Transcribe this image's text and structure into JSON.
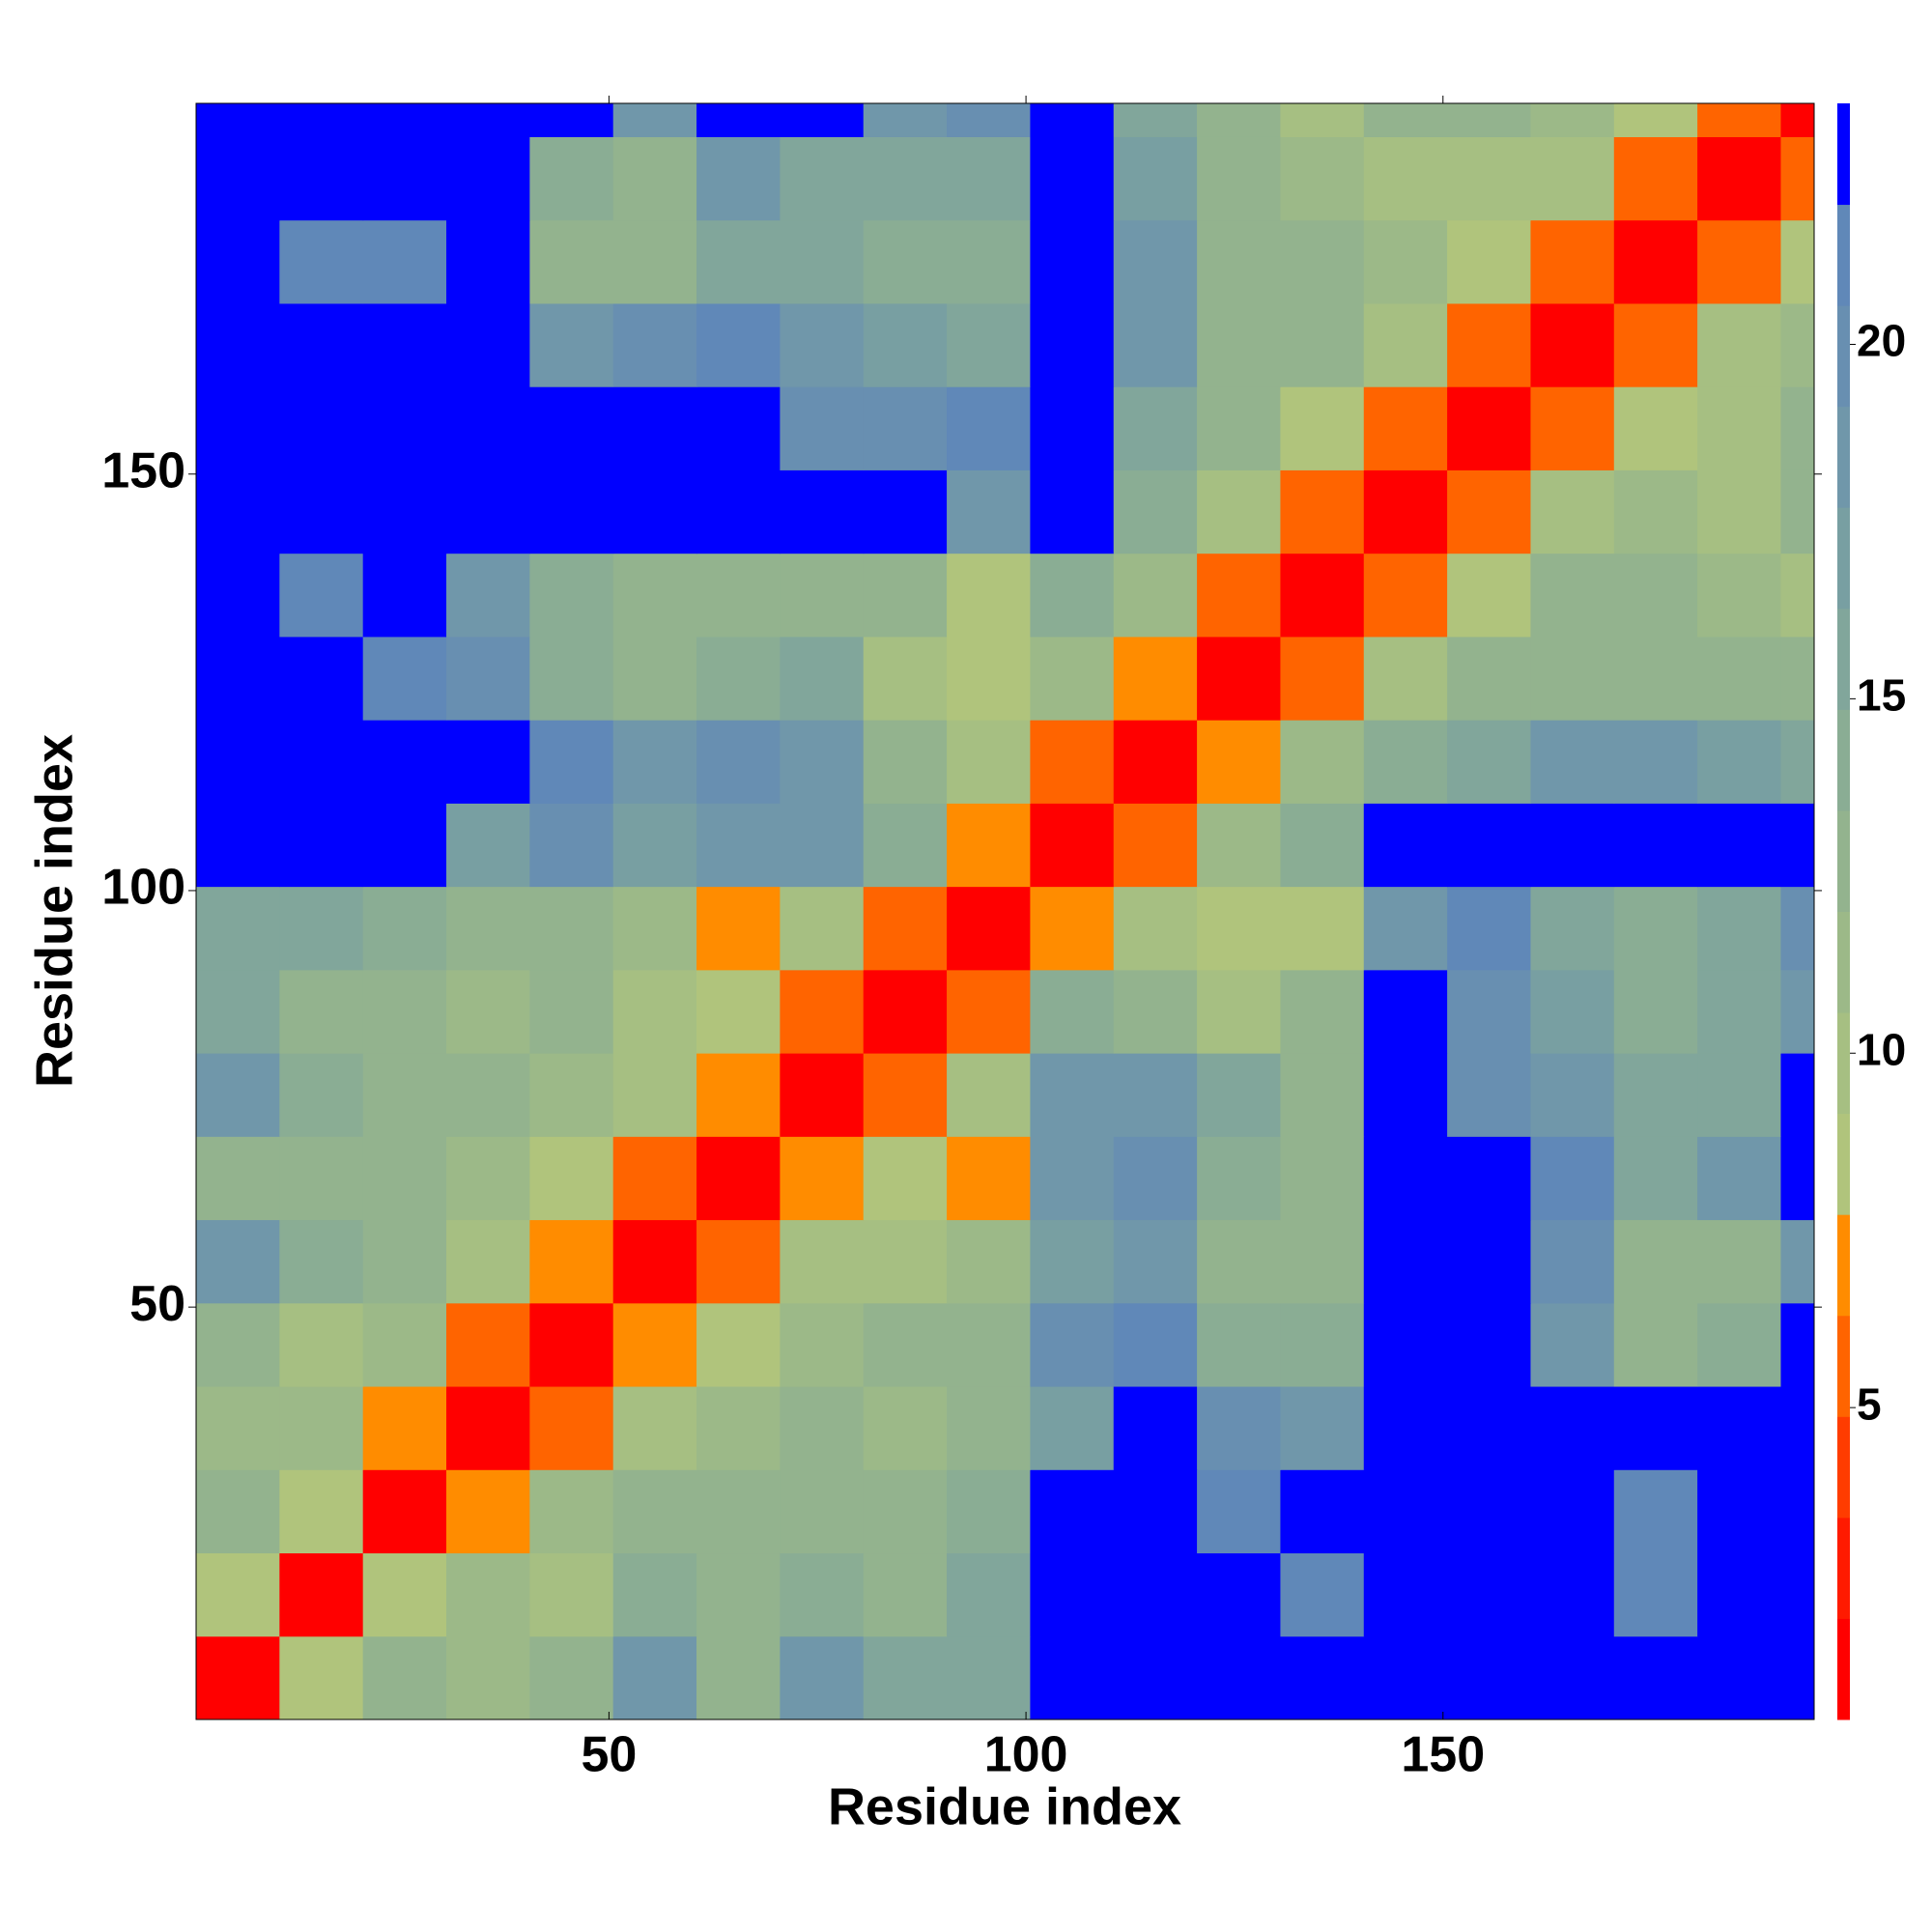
{
  "chart_data": {
    "type": "heatmap",
    "xlabel": "Residue index",
    "ylabel": "Residue index",
    "xlim": [
      0.5,
      194.5
    ],
    "ylim": [
      0.5,
      194.5
    ],
    "xticks": [
      50,
      100,
      150
    ],
    "yticks": [
      50,
      100,
      150
    ],
    "clim": [
      0.6,
      23.4
    ],
    "cticks": [
      5,
      10,
      15,
      20
    ],
    "colors": [
      "#ff0000",
      "#ff1a00",
      "#ff3c00",
      "#ff6400",
      "#ff8c00",
      "#b0c47c",
      "#a6bf82",
      "#9cb988",
      "#93b38e",
      "#8aad94",
      "#81a69b",
      "#789fa2",
      "#7097aa",
      "#688fb1",
      "#6088b8",
      "#0000ff"
    ],
    "bins": [
      0.5,
      10.5,
      20.5,
      30.5,
      40.5,
      50.5,
      60.5,
      70.5,
      80.5,
      90.5,
      100.5,
      110.5,
      120.5,
      130.5,
      140.5,
      150.5,
      160.5,
      170.5,
      180.5,
      190.5,
      194.5
    ],
    "z": [
      [
        2,
        9,
        12,
        11,
        13,
        18,
        13,
        18,
        15,
        16,
        23,
        23,
        23,
        23,
        23,
        23,
        23,
        23,
        23,
        23
      ],
      [
        9,
        2,
        8,
        11,
        10,
        14,
        13,
        14,
        12,
        15,
        23,
        23,
        22,
        21,
        23,
        23,
        23,
        21,
        23,
        23
      ],
      [
        12,
        8,
        2,
        7,
        11,
        12,
        13,
        12,
        12,
        14,
        23,
        23,
        21,
        22,
        23,
        23,
        23,
        21,
        22,
        23
      ],
      [
        11,
        11,
        7,
        2,
        6,
        10,
        11,
        12,
        11,
        13,
        17,
        23,
        20,
        19,
        23,
        23,
        23,
        23,
        23,
        23
      ],
      [
        13,
        10,
        11,
        6,
        2,
        7,
        9,
        11,
        12,
        12,
        20,
        21,
        14,
        14,
        23,
        23,
        18,
        13,
        14,
        23
      ],
      [
        18,
        14,
        12,
        10,
        7,
        2,
        6,
        10,
        10,
        11,
        17,
        19,
        13,
        13,
        23,
        23,
        20,
        12,
        13,
        19
      ],
      [
        13,
        13,
        13,
        11,
        9,
        6,
        2,
        7,
        9,
        7,
        18,
        20,
        14,
        13,
        23,
        23,
        21,
        16,
        19,
        23
      ],
      [
        18,
        14,
        12,
        12,
        11,
        10,
        7,
        2,
        6,
        10,
        18,
        19,
        15,
        13,
        23,
        20,
        18,
        15,
        16,
        22
      ],
      [
        15,
        12,
        12,
        11,
        12,
        10,
        9,
        6,
        2,
        6,
        14,
        12,
        10,
        13,
        23,
        20,
        17,
        14,
        15,
        19
      ],
      [
        16,
        15,
        14,
        13,
        12,
        11,
        7,
        10,
        6,
        2,
        7,
        10,
        9,
        9,
        19,
        21,
        15,
        14,
        15,
        20
      ],
      [
        23,
        23,
        23,
        17,
        20,
        17,
        18,
        18,
        14,
        7,
        2,
        6,
        11,
        14,
        23,
        23,
        22,
        23,
        23,
        23
      ],
      [
        23,
        23,
        23,
        23,
        21,
        19,
        20,
        19,
        12,
        10,
        6,
        2,
        7,
        11,
        14,
        16,
        18,
        18,
        17,
        16
      ],
      [
        23,
        22,
        21,
        20,
        14,
        13,
        14,
        15,
        10,
        9,
        11,
        7,
        2,
        6,
        10,
        12,
        12,
        13,
        12,
        13
      ],
      [
        23,
        21,
        22,
        19,
        14,
        13,
        13,
        13,
        13,
        9,
        14,
        11,
        6,
        2,
        6,
        9,
        12,
        13,
        11,
        10
      ],
      [
        23,
        23,
        23,
        23,
        23,
        23,
        23,
        23,
        23,
        19,
        23,
        14,
        10,
        6,
        2,
        6,
        10,
        11,
        10,
        12
      ],
      [
        23,
        23,
        23,
        23,
        23,
        23,
        23,
        20,
        20,
        21,
        23,
        16,
        12,
        9,
        6,
        2,
        6,
        9,
        10,
        12
      ],
      [
        23,
        23,
        23,
        23,
        18,
        20,
        21,
        18,
        17,
        15,
        22,
        18,
        12,
        12,
        10,
        6,
        2,
        6,
        10,
        11
      ],
      [
        23,
        21,
        21,
        23,
        13,
        12,
        16,
        15,
        14,
        14,
        23,
        18,
        13,
        13,
        11,
        9,
        6,
        2,
        6,
        9
      ],
      [
        23,
        23,
        22,
        23,
        14,
        13,
        19,
        16,
        15,
        15,
        23,
        17,
        12,
        11,
        10,
        10,
        10,
        6,
        2,
        6
      ],
      [
        23,
        23,
        23,
        23,
        23,
        19,
        23,
        22,
        19,
        20,
        23,
        16,
        13,
        10,
        12,
        12,
        11,
        9,
        6,
        2
      ]
    ]
  }
}
